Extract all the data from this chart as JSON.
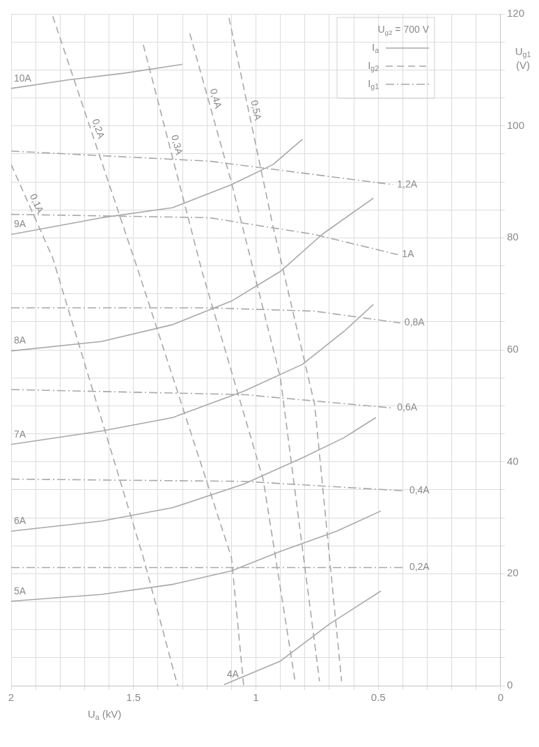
{
  "chart_data": {
    "type": "line",
    "legend_title": "U$_{g2}$ = 700 V",
    "xlabel": "U$_{a}$ (kV)",
    "ylabel": "U$_{g1}$ (V)",
    "annotations": [
      "I$_{a}$",
      "I$_{g2}$",
      "I$_{g1}$"
    ],
    "xlim": [
      2,
      0
    ],
    "ylim": [
      0,
      120
    ],
    "xticks": [
      0,
      {
        "value": 0.1,
        "label": null
      },
      {
        "value": 0.2,
        "label": null
      },
      {
        "value": 0.3,
        "label": null
      },
      {
        "value": 0.4,
        "label": null
      },
      0.5,
      {
        "value": 0.6,
        "label": null
      },
      {
        "value": 0.7,
        "label": null
      },
      {
        "value": 0.8,
        "label": null
      },
      {
        "value": 0.9,
        "label": null
      },
      1,
      {
        "value": 1.1,
        "label": null
      },
      {
        "value": 1.2,
        "label": null
      },
      {
        "value": 1.3,
        "label": null
      },
      {
        "value": 1.4,
        "label": null
      },
      1.5,
      {
        "value": 1.6,
        "label": null
      },
      {
        "value": 1.7,
        "label": null
      },
      {
        "value": 1.8,
        "label": null
      },
      {
        "value": 1.9,
        "label": null
      },
      2
    ],
    "yticks": [
      0,
      {
        "value": 5,
        "label": null
      },
      {
        "value": 10,
        "label": null
      },
      {
        "value": 15,
        "label": null
      },
      20,
      {
        "value": 25,
        "label": null
      },
      {
        "value": 30,
        "label": null
      },
      {
        "value": 35,
        "label": null
      },
      40,
      {
        "value": 45,
        "label": null
      },
      {
        "value": 50,
        "label": null
      },
      {
        "value": 55,
        "label": null
      },
      60,
      {
        "value": 65,
        "label": null
      },
      {
        "value": 70,
        "label": null
      },
      {
        "value": 75,
        "label": null
      },
      80,
      {
        "value": 85,
        "label": null
      },
      {
        "value": 90,
        "label": null
      },
      {
        "value": 95,
        "label": null
      },
      100,
      {
        "value": 105,
        "label": null
      },
      {
        "value": 110,
        "label": null
      },
      {
        "value": 115,
        "label": null
      },
      120
    ],
    "grid": true,
    "marker": "none",
    "series": [
      {
        "name": "10A",
        "color": "#a8a8a8",
        "line_style": "solid",
        "x": [
          2.0,
          1.77,
          1.54,
          1.3
        ],
        "values": [
          106.7,
          108.2,
          109.4,
          111
        ]
      },
      {
        "name": "9A",
        "color": "#a8a8a8",
        "line_style": "solid",
        "x": [
          2.0,
          1.63,
          1.34,
          1.1,
          0.93,
          0.81
        ],
        "values": [
          80.6,
          83.6,
          85.4,
          89.5,
          93.1,
          97.6
        ]
      },
      {
        "name": "8A",
        "color": "#a8a8a8",
        "line_style": "solid",
        "x": [
          2.0,
          1.63,
          1.34,
          1.1,
          0.9,
          0.73,
          0.52
        ],
        "values": [
          59.8,
          61.5,
          64.5,
          68.7,
          74,
          80.6,
          87.1
        ]
      },
      {
        "name": "7A",
        "color": "#a8a8a8",
        "line_style": "solid",
        "x": [
          2.0,
          1.63,
          1.34,
          1.05,
          0.81,
          0.64,
          0.52
        ],
        "values": [
          43.1,
          45.5,
          47.9,
          52.6,
          57.4,
          63.3,
          68.1
        ]
      },
      {
        "name": "6A",
        "color": "#a8a8a8",
        "line_style": "solid",
        "x": [
          2.0,
          1.63,
          1.34,
          1.05,
          0.81,
          0.64,
          0.51
        ],
        "values": [
          27.6,
          29.4,
          31.8,
          36,
          40.7,
          44.3,
          47.9
        ]
      },
      {
        "name": "5A",
        "color": "#a8a8a8",
        "line_style": "solid",
        "x": [
          2.0,
          1.63,
          1.34,
          1.1,
          0.9,
          0.67,
          0.49
        ],
        "values": [
          15.1,
          16.3,
          18.1,
          20.5,
          24,
          27.6,
          31.2
        ]
      },
      {
        "name": "4A",
        "color": "#a8a8a8",
        "line_style": "solid",
        "x": [
          1.13,
          0.9,
          0.7,
          0.49
        ],
        "values": [
          0.2,
          4.4,
          11,
          16.9
        ]
      },
      {
        "name": "0,1A",
        "color": "#a8a8a8",
        "line_style": "dashed",
        "x": [
          2.0,
          1.83,
          1.46,
          1.32
        ],
        "values": [
          93.1,
          76.4,
          22.9,
          0
        ]
      },
      {
        "name": "0,2A",
        "color": "#a8a8a8",
        "line_style": "dashed",
        "x": [
          1.83,
          1.48,
          1.1,
          1.05
        ],
        "values": [
          119.6,
          74,
          22.9,
          0
        ]
      },
      {
        "name": "0,3A",
        "color": "#a8a8a8",
        "line_style": "dashed",
        "x": [
          1.46,
          1.22,
          0.97,
          0.84
        ],
        "values": [
          114.5,
          74,
          36.8,
          0.8
        ]
      },
      {
        "name": "0,4A",
        "color": "#a8a8a8",
        "line_style": "dashed",
        "x": [
          1.27,
          1.1,
          0.9,
          0.74
        ],
        "values": [
          116.5,
          89.9,
          55,
          0.8
        ]
      },
      {
        "name": "0,5A",
        "color": "#a8a8a8",
        "line_style": "dashed",
        "x": [
          1.11,
          0.93,
          0.76,
          0.65
        ],
        "values": [
          119.3,
          82,
          50.2,
          0.8
        ]
      },
      {
        "name": "1,2A",
        "color": "#a8a8a8",
        "line_style": "dashdot",
        "x": [
          2.0,
          1.19,
          0.76,
          0.44
        ],
        "values": [
          95.5,
          93.7,
          91.3,
          89.5
        ]
      },
      {
        "name": "1A",
        "color": "#a8a8a8",
        "line_style": "dashdot",
        "x": [
          2.0,
          1.19,
          0.76,
          0.42
        ],
        "values": [
          84.2,
          83.6,
          80.6,
          77
        ]
      },
      {
        "name": "0,8A",
        "color": "#a8a8a8",
        "line_style": "dashdot",
        "x": [
          2.0,
          1.19,
          0.76,
          0.41
        ],
        "values": [
          67.5,
          67.5,
          66.9,
          64.8
        ]
      },
      {
        "name": "0,6A",
        "color": "#a8a8a8",
        "line_style": "dashdot",
        "x": [
          2.0,
          1.05,
          0.44
        ],
        "values": [
          52.9,
          52,
          49.6
        ]
      },
      {
        "name": "0,4A",
        "color": "#a8a8a8",
        "line_style": "dashdot",
        "x": [
          2.0,
          1.05,
          0.39
        ],
        "values": [
          36.9,
          36.5,
          34.8
        ]
      },
      {
        "name": "0,2A",
        "color": "#a8a8a8",
        "line_style": "dashdot",
        "x": [
          2.0,
          1.05,
          0.39
        ],
        "values": [
          21.1,
          21.1,
          21.1
        ]
      }
    ]
  }
}
